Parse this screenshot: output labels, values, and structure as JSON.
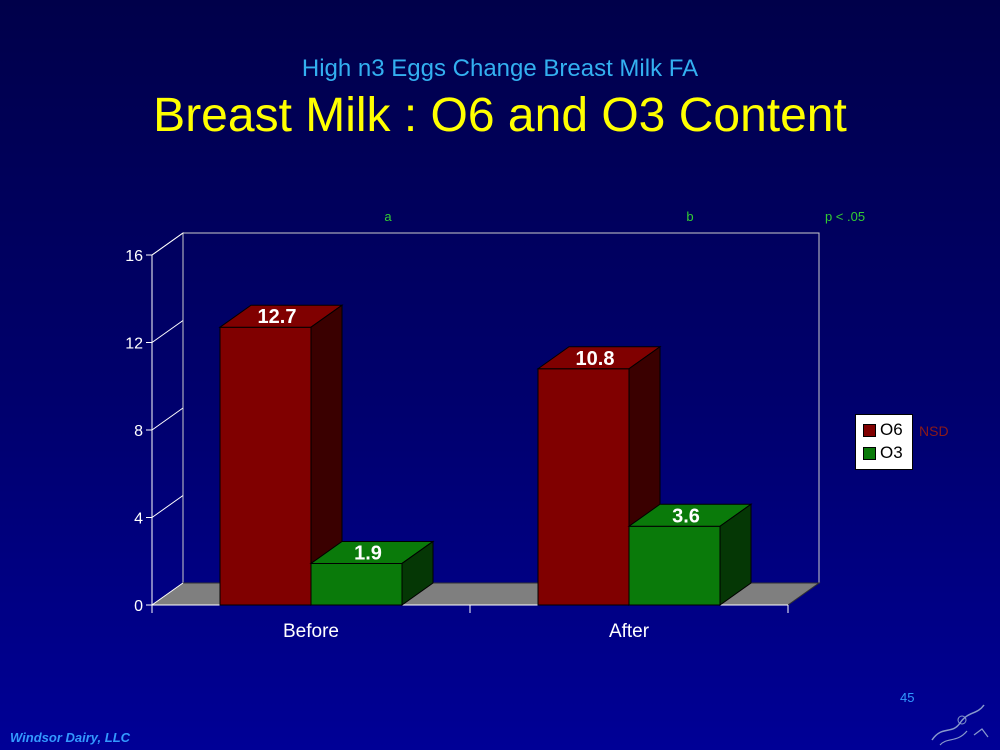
{
  "slide": {
    "subtitle": "High n3 Eggs Change Breast Milk FA",
    "title": "Breast Milk : O6 and O3 Content",
    "footer": "Windsor Dairy, LLC",
    "page_number": "45"
  },
  "colors": {
    "o6": "#800000",
    "o3": "#0a7a0a",
    "subtitle": "#33b0f0",
    "title": "#ffff00",
    "annotation": "#33cc33",
    "nsd": "#8b1a1a"
  },
  "chart_data": {
    "type": "bar",
    "categories": [
      "Before",
      "After"
    ],
    "series": [
      {
        "name": "O6",
        "values": [
          12.7,
          10.8
        ]
      },
      {
        "name": "O3",
        "values": [
          1.9,
          3.6
        ]
      }
    ],
    "ylim": [
      0,
      16
    ],
    "yticks": [
      "0",
      "4",
      "8",
      "12",
      "16"
    ],
    "grid": false,
    "legend": "right",
    "data_labels": [
      "12.7",
      "1.9",
      "10.8",
      "3.6"
    ],
    "annotations": {
      "a": "a",
      "b": "b",
      "p": "p < .05",
      "nsd": "NSD"
    }
  }
}
